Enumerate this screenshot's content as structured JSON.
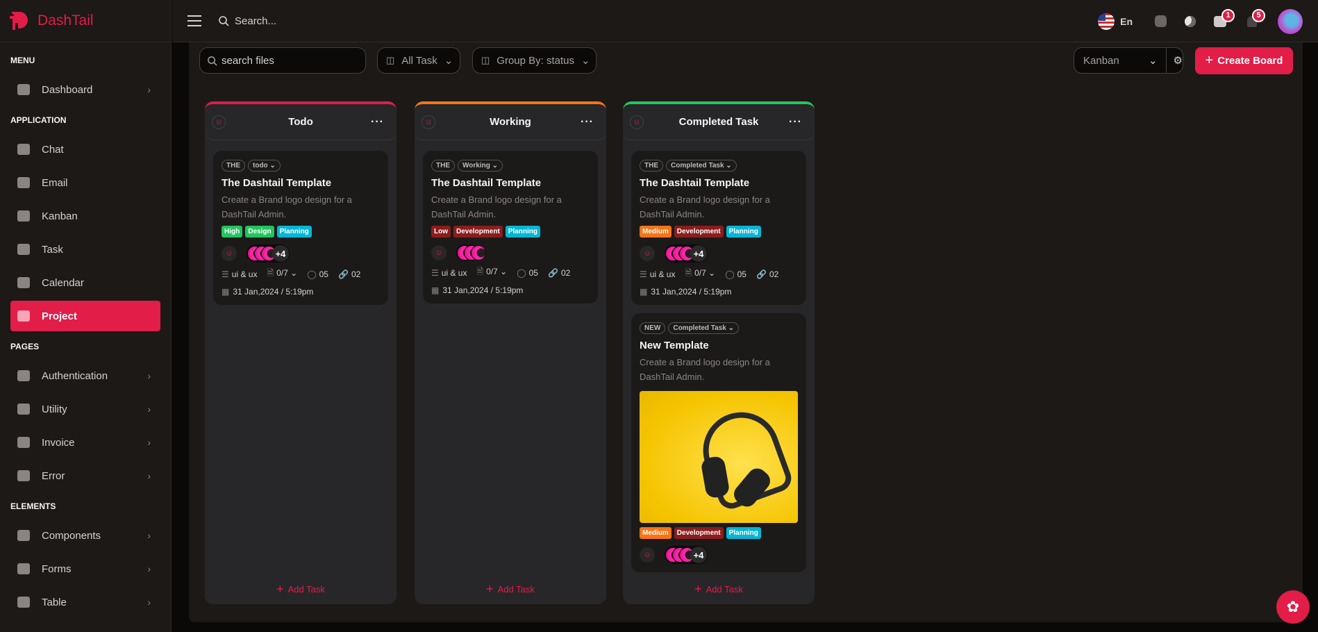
{
  "brand": {
    "name": "DashTail",
    "accent": "#e11d48"
  },
  "topbar": {
    "search_placeholder": "Search...",
    "language": "En",
    "messages_count": "1",
    "notifications_count": "5"
  },
  "sidebar": {
    "sections": [
      {
        "label": "MENU",
        "items": [
          {
            "label": "Dashboard",
            "chevron": true
          }
        ]
      },
      {
        "label": "APPLICATION",
        "items": [
          {
            "label": "Chat"
          },
          {
            "label": "Email"
          },
          {
            "label": "Kanban"
          },
          {
            "label": "Task"
          },
          {
            "label": "Calendar"
          },
          {
            "label": "Project",
            "active": true
          }
        ]
      },
      {
        "label": "PAGES",
        "items": [
          {
            "label": "Authentication",
            "chevron": true
          },
          {
            "label": "Utility",
            "chevron": true
          },
          {
            "label": "Invoice",
            "chevron": true
          },
          {
            "label": "Error",
            "chevron": true
          }
        ]
      },
      {
        "label": "ELEMENTS",
        "items": [
          {
            "label": "Components",
            "chevron": true
          },
          {
            "label": "Forms",
            "chevron": true
          },
          {
            "label": "Table",
            "chevron": true
          }
        ]
      }
    ]
  },
  "toolbar": {
    "search_placeholder": "search files",
    "filter_label": "All Task",
    "group_label": "Group By: status",
    "view_select": "Kanban",
    "create_label": "Create Board"
  },
  "columns": [
    {
      "title": "Todo",
      "color": "#e11d48",
      "add_label": "Add Task",
      "cards": [
        {
          "code": "THE",
          "status": "todo",
          "title": "The Dashtail Template",
          "desc": "Create a Brand logo design for a DashTail Admin.",
          "tags": [
            {
              "label": "High",
              "color": "#22c55e"
            },
            {
              "label": "Design",
              "color": "#22c55e"
            },
            {
              "label": "Planning",
              "color": "#06b6d4"
            }
          ],
          "more_assignees": "+4",
          "category": "ui & ux",
          "subtasks": "0/7",
          "comments": "05",
          "links": "02",
          "date": "31 Jan,2024 / 5:19pm"
        }
      ]
    },
    {
      "title": "Working",
      "color": "#f97316",
      "add_label": "Add Task",
      "cards": [
        {
          "code": "THE",
          "status": "Working",
          "title": "The Dashtail Template",
          "desc": "Create a Brand logo design for a DashTail Admin.",
          "tags": [
            {
              "label": "Low",
              "color": "#8b1d1d"
            },
            {
              "label": "Development",
              "color": "#8b1d1d"
            },
            {
              "label": "Planning",
              "color": "#06b6d4"
            }
          ],
          "more_assignees": "",
          "category": "ui & ux",
          "subtasks": "0/7",
          "comments": "05",
          "links": "02",
          "date": "31 Jan,2024 / 5:19pm"
        }
      ]
    },
    {
      "title": "Completed Task",
      "color": "#22c55e",
      "add_label": "Add Task",
      "cards": [
        {
          "code": "THE",
          "status": "Completed Task",
          "title": "The Dashtail Template",
          "desc": "Create a Brand logo design for a DashTail Admin.",
          "tags": [
            {
              "label": "Medium",
              "color": "#f97316"
            },
            {
              "label": "Development",
              "color": "#8b1d1d"
            },
            {
              "label": "Planning",
              "color": "#06b6d4"
            }
          ],
          "more_assignees": "+4",
          "category": "ui & ux",
          "subtasks": "0/7",
          "comments": "05",
          "links": "02",
          "date": "31 Jan,2024 / 5:19pm"
        },
        {
          "code": "NEW",
          "status": "Completed Task",
          "title": "New Template",
          "desc": "Create a Brand logo design for a DashTail Admin.",
          "image": "headphones-on-yellow",
          "tags": [
            {
              "label": "Medium",
              "color": "#f97316"
            },
            {
              "label": "Development",
              "color": "#8b1d1d"
            },
            {
              "label": "Planning",
              "color": "#06b6d4"
            }
          ],
          "more_assignees": "+4"
        }
      ]
    }
  ]
}
